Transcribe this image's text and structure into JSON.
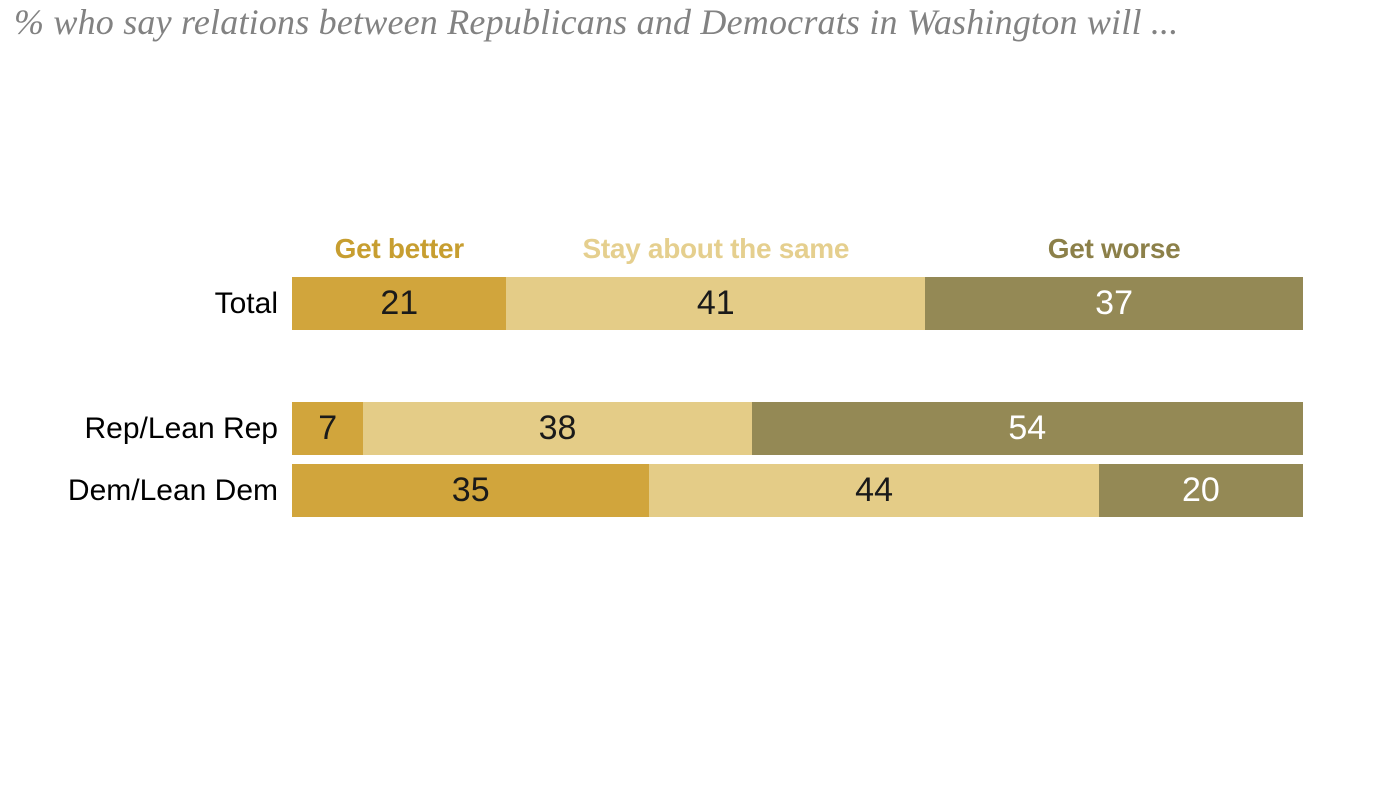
{
  "page": {
    "background": "#ffffff"
  },
  "title": {
    "text": "% who say relations between Republicans and Democrats in Washington will ...",
    "color": "#828282"
  },
  "chart_data": {
    "type": "bar",
    "orientation": "horizontal",
    "stacked": true,
    "unit": "percent",
    "title": "% who say relations between Republicans and Democrats in Washington will ...",
    "categories": [
      "Total",
      "Rep/Lean Rep",
      "Dem/Lean Dem"
    ],
    "series": [
      {
        "name": "Get better",
        "color": "#d1a53c",
        "header_color": "#c79e30",
        "value_color": "#1a1a1a",
        "values": [
          21,
          7,
          35
        ]
      },
      {
        "name": "Stay about the same",
        "color": "#e4cc87",
        "header_color": "#e5cf8e",
        "value_color": "#1a1a1a",
        "values": [
          41,
          38,
          44
        ]
      },
      {
        "name": "Get worse",
        "color": "#948955",
        "header_color": "#8c8049",
        "value_color": "#ffffff",
        "values": [
          37,
          54,
          20
        ]
      }
    ],
    "value_labels_shown": true,
    "legend_position": "top-over-total-segments",
    "axes_shown": false,
    "grid": false
  }
}
